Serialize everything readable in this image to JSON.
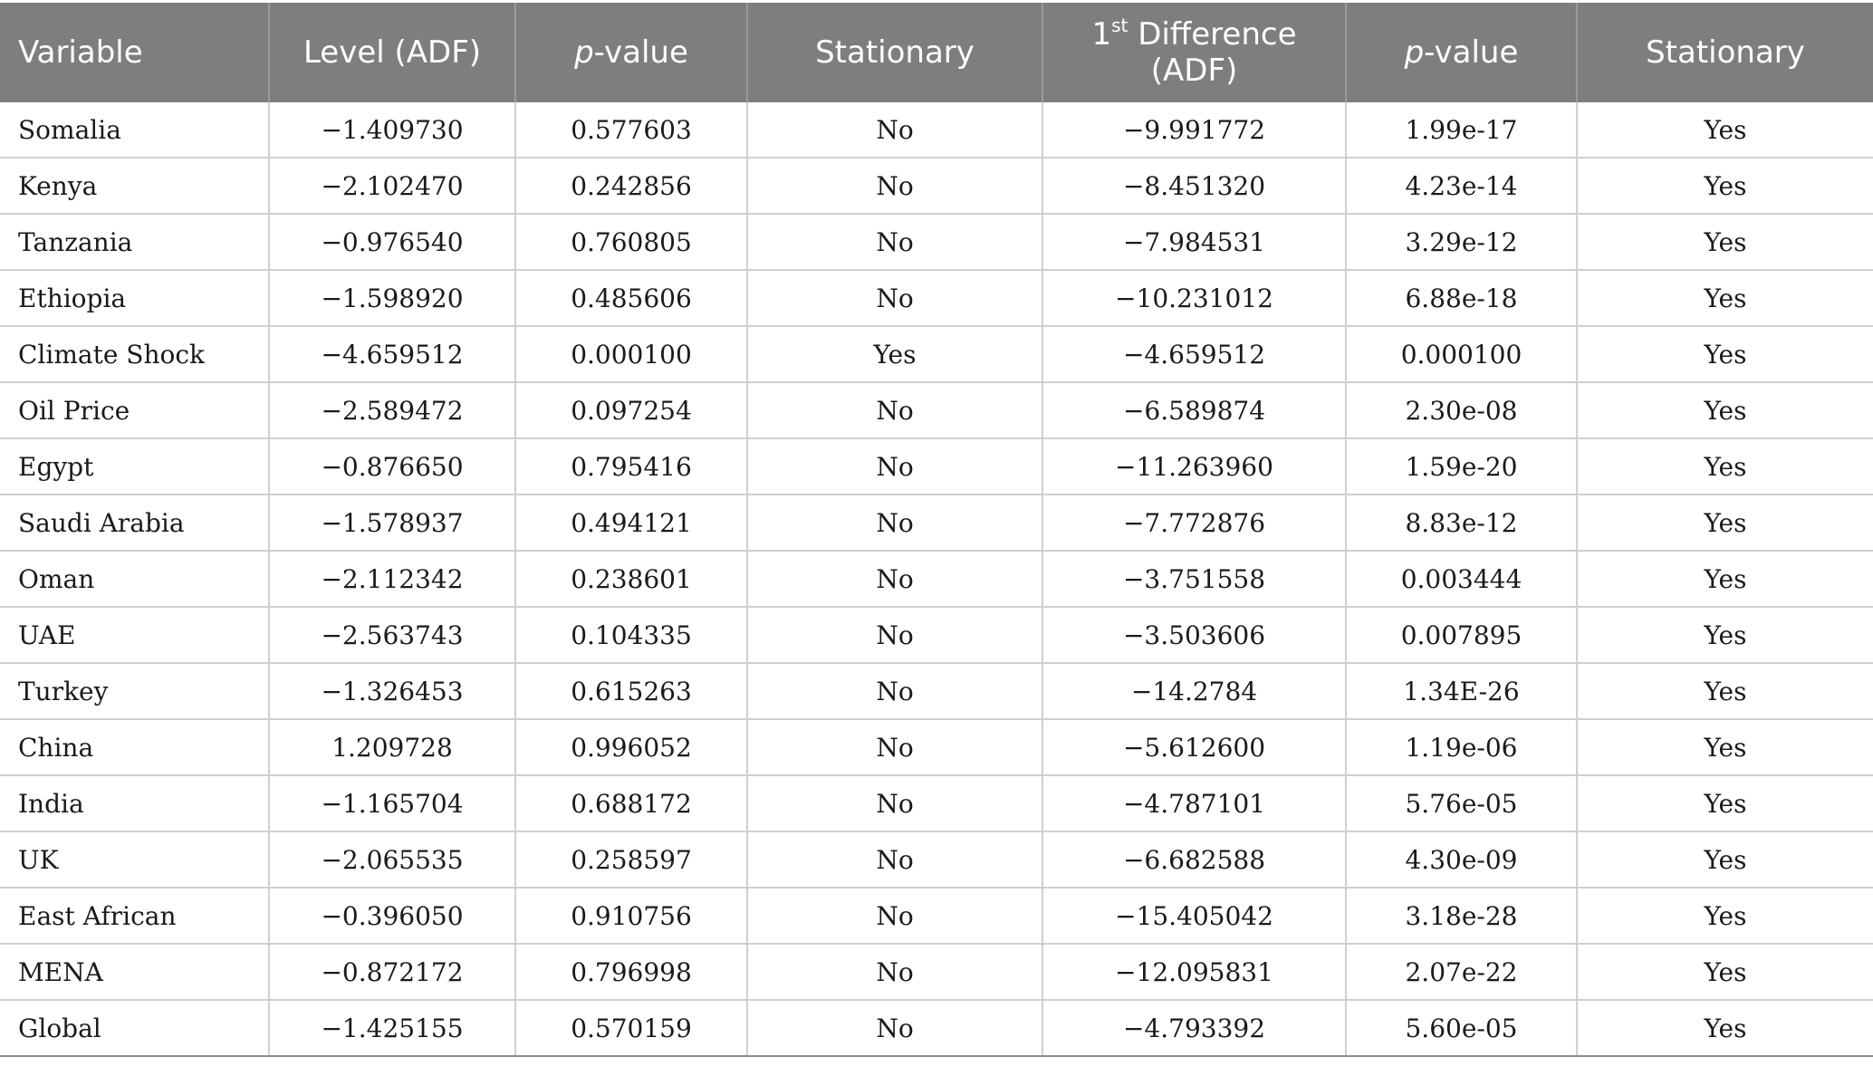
{
  "table": {
    "headers": {
      "variable": "Variable",
      "level_adf": "Level (ADF)",
      "p_value_1_p": "p",
      "p_value_1_rest": "-value",
      "stationary_1": "Stationary",
      "first_diff_num": "1",
      "first_diff_sup": "st",
      "first_diff_line1": " Difference",
      "first_diff_line2": "(ADF)",
      "p_value_2_p": "p",
      "p_value_2_rest": "-value",
      "stationary_2": "Stationary"
    },
    "rows": [
      {
        "variable": "Somalia",
        "level": "−1.409730",
        "p1": "0.577603",
        "stat1": "No",
        "diff": "−9.991772",
        "p2": "1.99e-17",
        "stat2": "Yes"
      },
      {
        "variable": "Kenya",
        "level": "−2.102470",
        "p1": "0.242856",
        "stat1": "No",
        "diff": "−8.451320",
        "p2": "4.23e-14",
        "stat2": "Yes"
      },
      {
        "variable": "Tanzania",
        "level": "−0.976540",
        "p1": "0.760805",
        "stat1": "No",
        "diff": "−7.984531",
        "p2": "3.29e-12",
        "stat2": "Yes"
      },
      {
        "variable": "Ethiopia",
        "level": "−1.598920",
        "p1": "0.485606",
        "stat1": "No",
        "diff": "−10.231012",
        "p2": "6.88e-18",
        "stat2": "Yes"
      },
      {
        "variable": "Climate Shock",
        "level": "−4.659512",
        "p1": "0.000100",
        "stat1": "Yes",
        "diff": "−4.659512",
        "p2": "0.000100",
        "stat2": "Yes"
      },
      {
        "variable": "Oil Price",
        "level": "−2.589472",
        "p1": "0.097254",
        "stat1": "No",
        "diff": "−6.589874",
        "p2": "2.30e-08",
        "stat2": "Yes"
      },
      {
        "variable": "Egypt",
        "level": "−0.876650",
        "p1": "0.795416",
        "stat1": "No",
        "diff": "−11.263960",
        "p2": "1.59e-20",
        "stat2": "Yes"
      },
      {
        "variable": "Saudi Arabia",
        "level": "−1.578937",
        "p1": "0.494121",
        "stat1": "No",
        "diff": "−7.772876",
        "p2": "8.83e-12",
        "stat2": "Yes"
      },
      {
        "variable": "Oman",
        "level": "−2.112342",
        "p1": "0.238601",
        "stat1": "No",
        "diff": "−3.751558",
        "p2": "0.003444",
        "stat2": "Yes"
      },
      {
        "variable": "UAE",
        "level": "−2.563743",
        "p1": "0.104335",
        "stat1": "No",
        "diff": "−3.503606",
        "p2": "0.007895",
        "stat2": "Yes"
      },
      {
        "variable": "Turkey",
        "level": "−1.326453",
        "p1": "0.615263",
        "stat1": "No",
        "diff": "−14.2784",
        "p2": "1.34E-26",
        "stat2": "Yes"
      },
      {
        "variable": "China",
        "level": "1.209728",
        "p1": "0.996052",
        "stat1": "No",
        "diff": "−5.612600",
        "p2": "1.19e-06",
        "stat2": "Yes"
      },
      {
        "variable": "India",
        "level": "−1.165704",
        "p1": "0.688172",
        "stat1": "No",
        "diff": "−4.787101",
        "p2": "5.76e-05",
        "stat2": "Yes"
      },
      {
        "variable": "UK",
        "level": "−2.065535",
        "p1": "0.258597",
        "stat1": "No",
        "diff": "−6.682588",
        "p2": "4.30e-09",
        "stat2": "Yes"
      },
      {
        "variable": "East African",
        "level": "−0.396050",
        "p1": "0.910756",
        "stat1": "No",
        "diff": "−15.405042",
        "p2": "3.18e-28",
        "stat2": "Yes"
      },
      {
        "variable": "MENA",
        "level": "−0.872172",
        "p1": "0.796998",
        "stat1": "No",
        "diff": "−12.095831",
        "p2": "2.07e-22",
        "stat2": "Yes"
      },
      {
        "variable": "Global",
        "level": "−1.425155",
        "p1": "0.570159",
        "stat1": "No",
        "diff": "−4.793392",
        "p2": "5.60e-05",
        "stat2": "Yes"
      }
    ]
  }
}
